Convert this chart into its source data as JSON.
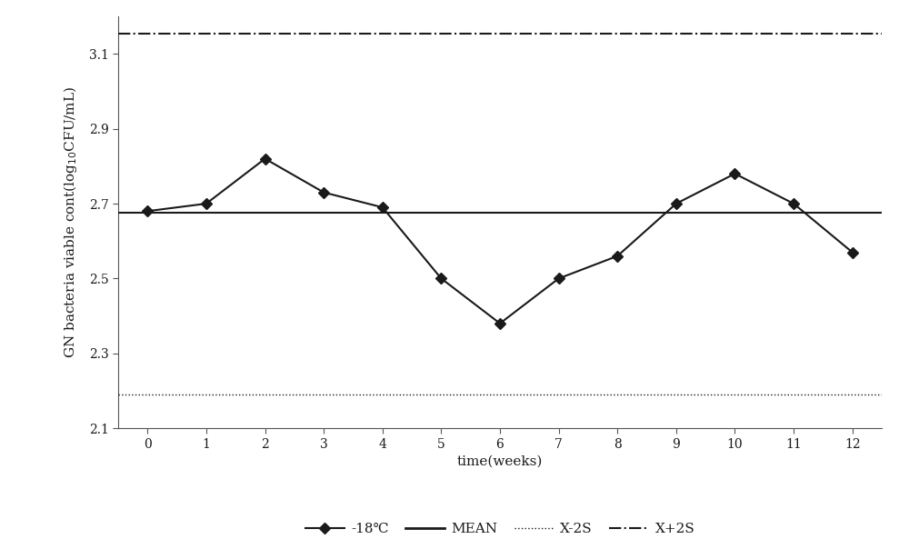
{
  "x": [
    0,
    1,
    2,
    3,
    4,
    5,
    6,
    7,
    8,
    9,
    10,
    11,
    12
  ],
  "y_18c": [
    2.68,
    2.7,
    2.82,
    2.73,
    2.69,
    2.5,
    2.38,
    2.5,
    2.56,
    2.7,
    2.78,
    2.7,
    2.57
  ],
  "mean": 2.675,
  "x_minus_2s": 2.19,
  "x_plus_2s": 3.155,
  "xlabel": "time(weeks)",
  "ylabel": "GN bacteria viable cont(log$_{10}$CFU/mL)",
  "ylim": [
    2.1,
    3.2
  ],
  "yticks": [
    2.1,
    2.3,
    2.5,
    2.7,
    2.9,
    3.1
  ],
  "xticks": [
    0,
    1,
    2,
    3,
    4,
    5,
    6,
    7,
    8,
    9,
    10,
    11,
    12
  ],
  "line_color": "#1a1a1a",
  "background_color": "#ffffff",
  "legend_labels": [
    "-18℃",
    "MEAN",
    "X-2S",
    "X+2S"
  ],
  "label_fontsize": 11,
  "tick_fontsize": 10,
  "legend_fontsize": 11,
  "figsize": [
    10.0,
    6.04
  ],
  "dpi": 100
}
